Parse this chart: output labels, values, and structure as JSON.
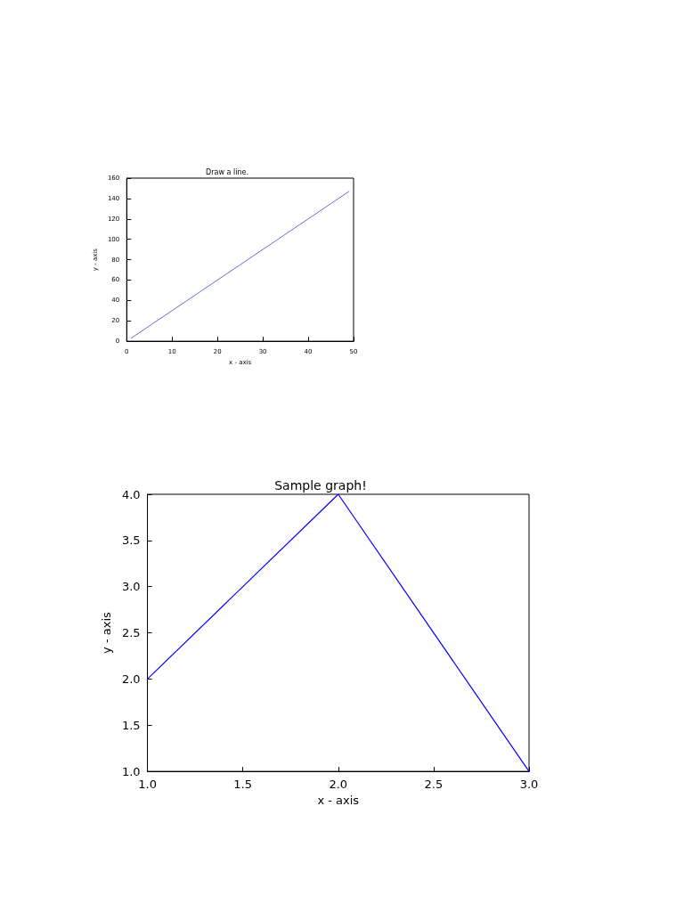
{
  "chart_data": [
    {
      "type": "line",
      "title": "Draw a line.",
      "xlabel": "x - axis",
      "ylabel": "y - axis",
      "x": [
        1,
        5,
        9,
        13,
        17,
        21,
        25,
        29,
        33,
        37,
        41,
        45,
        49
      ],
      "series": [
        {
          "color": "#6a6ae0",
          "values": [
            3,
            15,
            27,
            39,
            51,
            63,
            75,
            87,
            99,
            111,
            123,
            135,
            147
          ]
        }
      ],
      "xlim": [
        0,
        50
      ],
      "xticks": [
        0,
        10,
        20,
        30,
        40,
        50
      ],
      "ylim": [
        0,
        160
      ],
      "yticks": [
        0,
        20,
        40,
        60,
        80,
        100,
        120,
        140,
        160
      ],
      "grid": false,
      "marker": "none",
      "line_style": "solid"
    },
    {
      "type": "line",
      "title": "Sample graph!",
      "xlabel": "x - axis",
      "ylabel": "y - axis",
      "x": [
        1,
        2,
        3
      ],
      "series": [
        {
          "color": "#0000ff",
          "values": [
            2,
            4,
            1
          ]
        }
      ],
      "xlim": [
        1,
        3
      ],
      "xticks": [
        {
          "value": 1,
          "label": "1.0"
        },
        {
          "value": 1.5,
          "label": "1.5"
        },
        {
          "value": 2,
          "label": "2.0"
        },
        {
          "value": 2.5,
          "label": "2.5"
        },
        {
          "value": 3,
          "label": "3.0"
        }
      ],
      "ylim": [
        1,
        4
      ],
      "yticks": [
        {
          "value": 1,
          "label": "1.0"
        },
        {
          "value": 1.5,
          "label": "1.5"
        },
        {
          "value": 2,
          "label": "2.0"
        },
        {
          "value": 2.5,
          "label": "2.5"
        },
        {
          "value": 3,
          "label": "3.0"
        },
        {
          "value": 3.5,
          "label": "3.5"
        },
        {
          "value": 4,
          "label": "4.0"
        }
      ],
      "grid": false,
      "marker": "none",
      "line_style": "solid"
    }
  ]
}
